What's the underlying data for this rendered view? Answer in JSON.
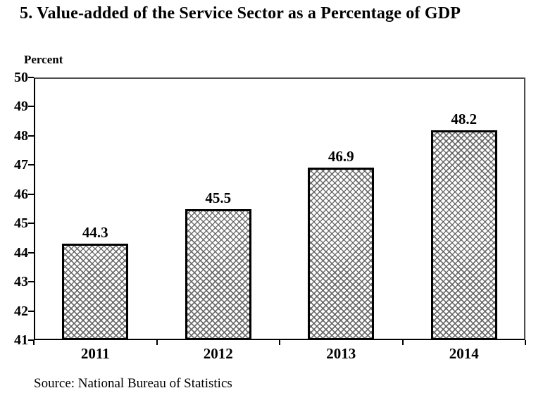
{
  "page": {
    "title": "5. Value-added of the Service Sector as a Percentage of GDP",
    "source": "Source: National Bureau of Statistics"
  },
  "chart_data": {
    "type": "bar",
    "title": "5. Value-added of the Service Sector as a Percentage of GDP",
    "xlabel": "",
    "ylabel": "Percent",
    "categories": [
      "2011",
      "2012",
      "2013",
      "2014"
    ],
    "values": [
      44.3,
      45.5,
      46.9,
      48.2
    ],
    "data_labels": [
      "44.3",
      "45.5",
      "46.9",
      "48.2"
    ],
    "ylim": [
      41,
      50
    ],
    "yticks": [
      41,
      42,
      43,
      44,
      45,
      46,
      47,
      48,
      49,
      50
    ],
    "grid": false,
    "legend": false,
    "bar_fill_style": "gray-crosshatch-on-white",
    "bar_border_color": "#000000",
    "hatch_color": "#5a5a5a",
    "text_color": "#000000",
    "background_color": "#ffffff",
    "source_note": "Source: National Bureau of Statistics"
  }
}
